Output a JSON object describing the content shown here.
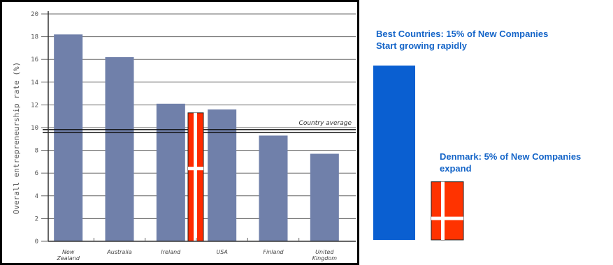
{
  "chart_data": [
    {
      "type": "bar",
      "title": "",
      "xlabel": "",
      "ylabel": "Overall entrepreneurship rate (%)",
      "ylim": [
        0,
        20
      ],
      "yticks": [
        0,
        2,
        4,
        6,
        8,
        10,
        12,
        14,
        16,
        18,
        20
      ],
      "categories": [
        "New Zealand",
        "Australia",
        "Ireland",
        "USA",
        "Finland",
        "United Kingdom"
      ],
      "values": [
        18.2,
        16.2,
        12.1,
        11.6,
        9.3,
        7.7
      ],
      "overlay_flag": {
        "value": 11.3,
        "colors": {
          "fill": "#ff2a00",
          "cross": "#ffffff"
        }
      },
      "reference_line": {
        "label": "Country average",
        "value": 9.7
      },
      "grid": true,
      "colors": {
        "bars": "#7080aa",
        "axis": "#333333"
      }
    },
    {
      "type": "bar",
      "categories": [
        "Best Countries",
        "Denmark"
      ],
      "values": [
        15,
        5
      ],
      "annotations": [
        {
          "line1": "Best Countries: 15% of New Companies",
          "line2": "Start growing rapidly"
        },
        {
          "line1": "Denmark: 5% of New Companies",
          "line2": "expand"
        }
      ],
      "colors": {
        "best": "#0a5fd1",
        "denmark": "#ff3300",
        "cross": "#ffffff",
        "text": "#1565c8"
      }
    }
  ]
}
